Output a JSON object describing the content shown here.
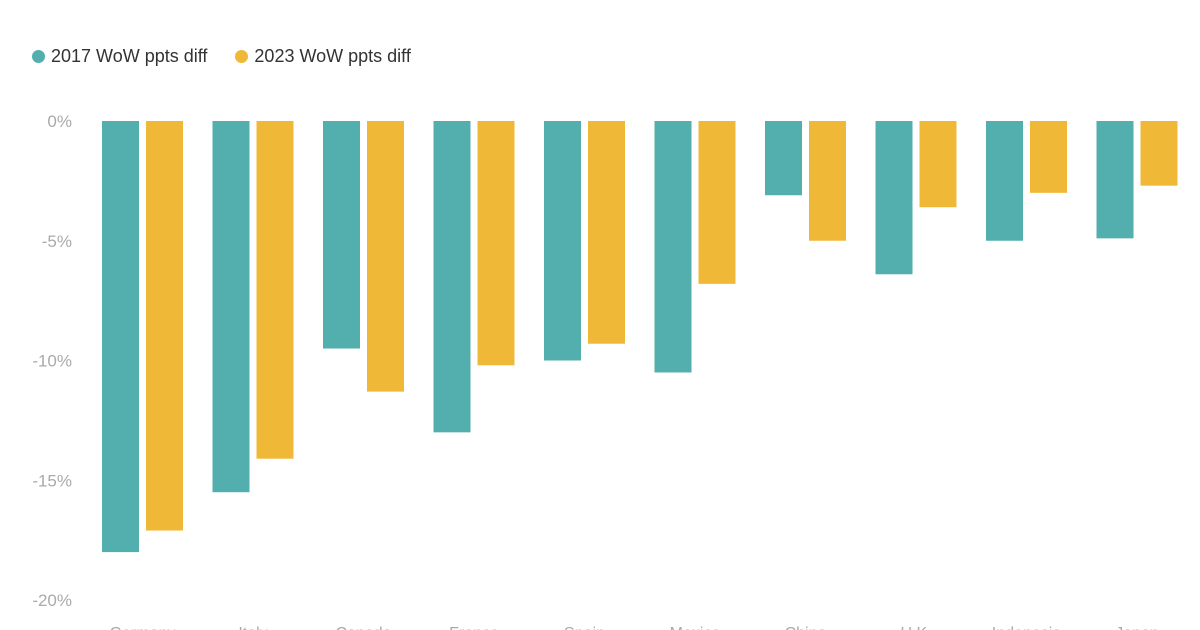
{
  "chart_data": {
    "type": "bar",
    "title": "",
    "xlabel": "",
    "ylabel": "",
    "categories": [
      "Germany",
      "Italy",
      "Canada",
      "France",
      "Spain",
      "Mexico",
      "China",
      "U.K.",
      "Indonesia",
      "Japan"
    ],
    "series": [
      {
        "name": "2017 WoW ppts diff",
        "color": "#52afae",
        "values": [
          -18.0,
          -15.5,
          -9.5,
          -13.0,
          -10.0,
          -10.5,
          -3.1,
          -6.4,
          -5.0,
          -4.9
        ]
      },
      {
        "name": "2023 WoW ppts diff",
        "color": "#efb837",
        "values": [
          -17.1,
          -14.1,
          -11.3,
          -10.2,
          -9.3,
          -6.8,
          -5.0,
          -3.6,
          -3.0,
          -2.7
        ]
      }
    ],
    "ylim": [
      -20,
      0
    ],
    "yticks": [
      0,
      -5,
      -10,
      -15,
      -20
    ],
    "ytick_labels": [
      "0%",
      "-5%",
      "-10%",
      "-15%",
      "-20%"
    ],
    "legend_position": "top-left",
    "grid": false
  }
}
